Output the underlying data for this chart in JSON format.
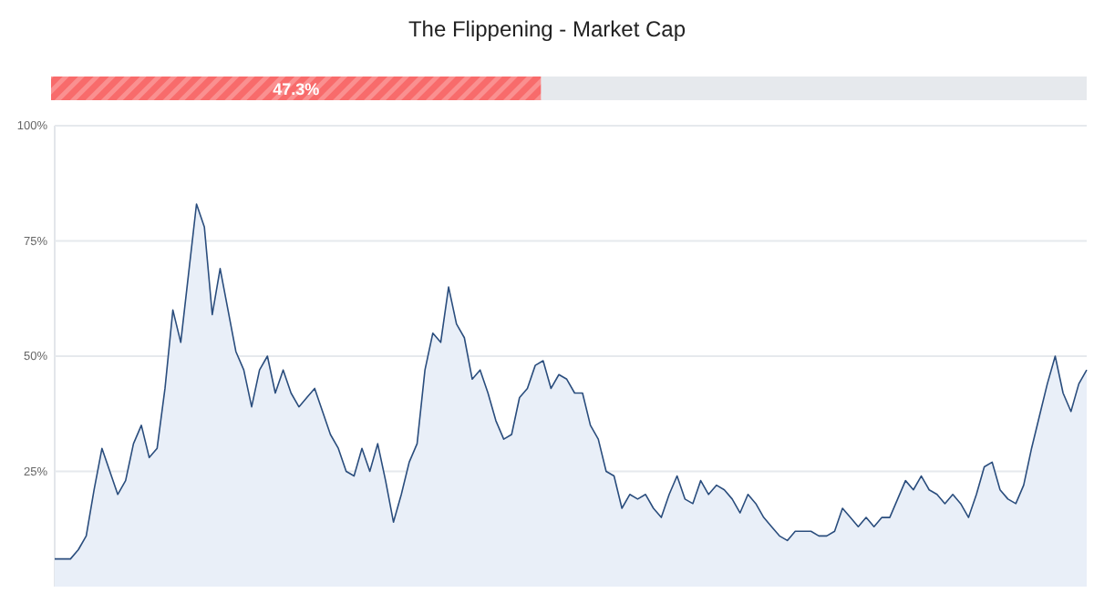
{
  "chart_data": [
    {
      "type": "other",
      "title": "The Flippening - Market Cap",
      "categories": [
        null
      ],
      "values": [
        47.3
      ],
      "value_labels": [
        "47.3%"
      ],
      "color": "#f86b6b"
    },
    {
      "type": "area",
      "color": "#2a4d7d",
      "ylim": [
        0,
        100
      ],
      "yticks": [
        {
          "value": 25,
          "label": "25%"
        },
        {
          "value": 50,
          "label": "50%"
        },
        {
          "value": 75,
          "label": "75%"
        },
        {
          "value": 100,
          "label": "100%"
        }
      ],
      "grid": "y",
      "tick_labels": "y",
      "categories": [
        null,
        null,
        null,
        null,
        null,
        null,
        null,
        null,
        null,
        null,
        null,
        null,
        null,
        null,
        null,
        null,
        null,
        null,
        null,
        null,
        null,
        null,
        null,
        null,
        null,
        null,
        null,
        null,
        null,
        null,
        null,
        null,
        null,
        null,
        null,
        null,
        null,
        null,
        null,
        null,
        null,
        null,
        null,
        null,
        null,
        null,
        null,
        null,
        null,
        null,
        null,
        null,
        null,
        null,
        null,
        null,
        null,
        null,
        null,
        null,
        null,
        null,
        null,
        null,
        null,
        null,
        null,
        null,
        null,
        null,
        null,
        null,
        null,
        null,
        null,
        null,
        null,
        null,
        null,
        null,
        null,
        null,
        null,
        null,
        null,
        null,
        null,
        null,
        null,
        null,
        null,
        null,
        null,
        null,
        null,
        null,
        null,
        null,
        null,
        null,
        null,
        null,
        null,
        null,
        null,
        null,
        null,
        null,
        null,
        null,
        null,
        null,
        null,
        null,
        null,
        null,
        null,
        null,
        null,
        null,
        null,
        null,
        null,
        null,
        null,
        null,
        null,
        null,
        null,
        null,
        null,
        null
      ],
      "values": [
        6,
        6,
        6,
        8,
        11,
        21,
        30,
        25,
        20,
        23,
        31,
        35,
        28,
        30,
        43,
        60,
        53,
        68,
        83,
        78,
        59,
        69,
        60,
        51,
        47,
        39,
        47,
        50,
        42,
        47,
        42,
        39,
        41,
        43,
        38,
        33,
        30,
        25,
        24,
        30,
        25,
        31,
        23,
        14,
        20,
        27,
        31,
        47,
        55,
        53,
        65,
        57,
        54,
        45,
        47,
        42,
        36,
        32,
        33,
        41,
        43,
        48,
        49,
        43,
        46,
        45,
        42,
        42,
        35,
        32,
        25,
        24,
        17,
        20,
        19,
        20,
        17,
        15,
        20,
        24,
        19,
        18,
        23,
        20,
        22,
        21,
        19,
        16,
        20,
        18,
        15,
        13,
        11,
        10,
        12,
        12,
        12,
        11,
        11,
        12,
        17,
        15,
        13,
        15,
        13,
        15,
        15,
        19,
        23,
        21,
        24,
        21,
        20,
        18,
        20,
        18,
        15,
        20,
        26,
        27,
        21,
        19,
        18,
        22,
        30,
        37,
        44,
        50,
        42,
        38,
        44,
        47
      ]
    }
  ]
}
